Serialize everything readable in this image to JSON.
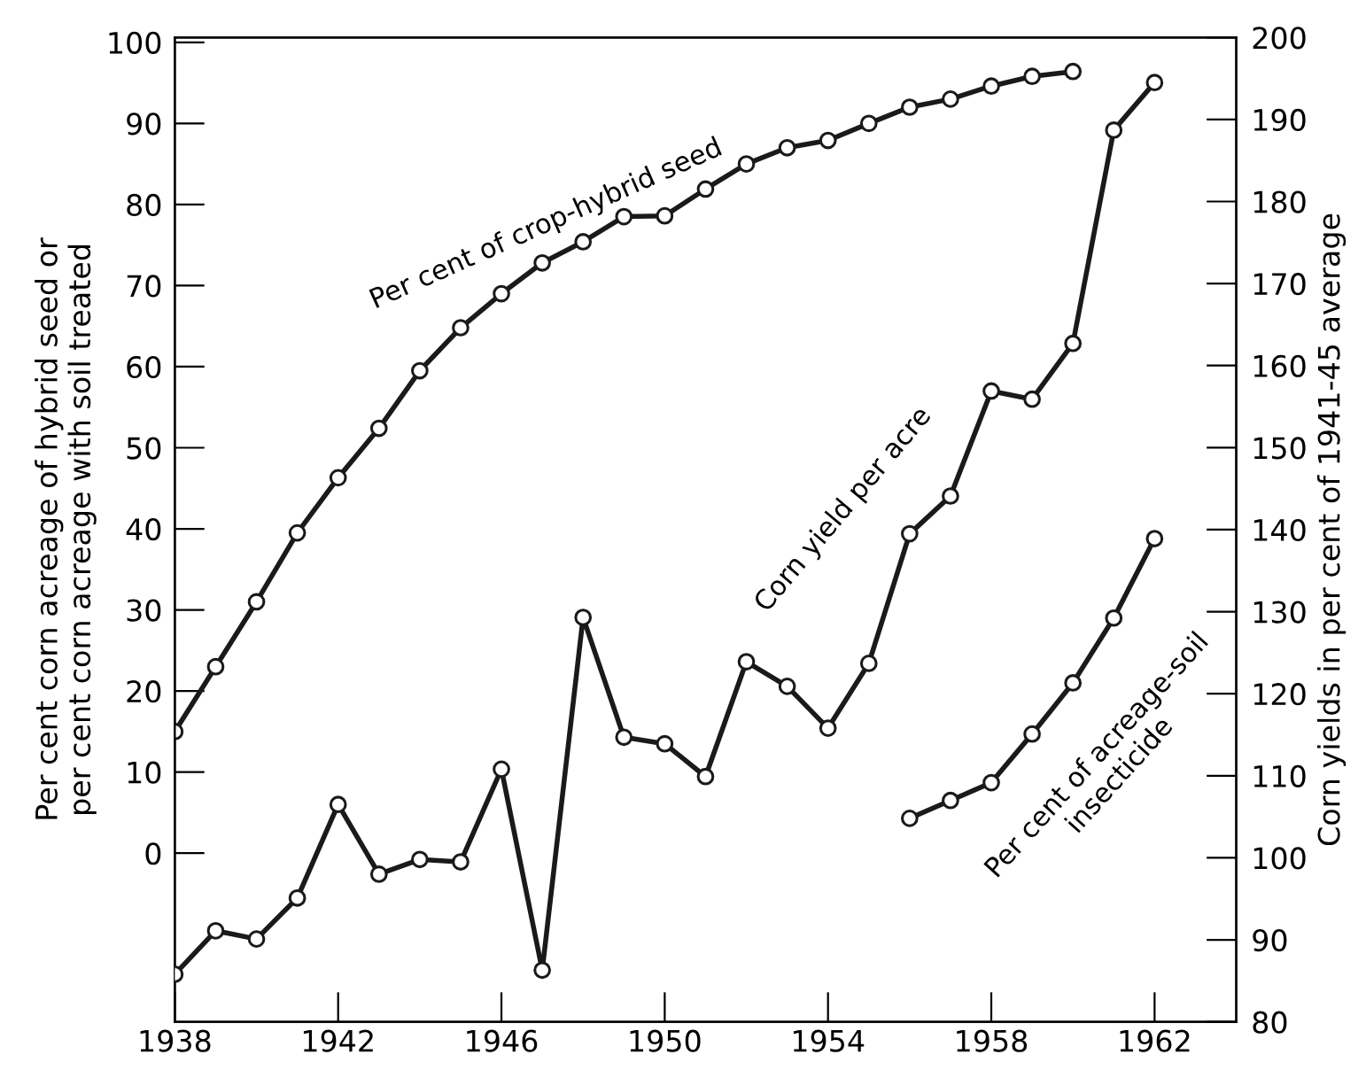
{
  "chart_data": {
    "type": "line",
    "ylabel": "Per cent corn acreage of hybrid seed or\nper cent corn acreage with soil treated",
    "y2label": "Corn yields in per cent of 1941-45 average",
    "xlim": [
      1938,
      1964
    ],
    "xticks": [
      1938,
      1942,
      1946,
      1950,
      1954,
      1958,
      1962
    ],
    "ylim": [
      -20.8,
      100.6
    ],
    "yticks": [
      0,
      10,
      20,
      30,
      40,
      50,
      60,
      70,
      80,
      90,
      100
    ],
    "y2lim": [
      80,
      200
    ],
    "y2ticks": [
      80,
      90,
      100,
      110,
      120,
      130,
      140,
      150,
      160,
      170,
      180,
      190,
      200
    ],
    "marker": "circle",
    "line_style": "solid",
    "grid": false,
    "legend": false,
    "annotations": [
      "Per cent of crop-hybrid seed",
      "Corn yield per acre",
      "Per cent of acreage-soil\ninsecticide"
    ],
    "series": [
      {
        "color": "#1a1a1a",
        "x": [
          1938,
          1939,
          1940,
          1941,
          1942,
          1943,
          1944,
          1945,
          1946,
          1947,
          1948,
          1949,
          1950,
          1951,
          1952,
          1953,
          1954,
          1955,
          1956,
          1957,
          1958,
          1959,
          1960
        ],
        "values": [
          15,
          23,
          31,
          39.5,
          46.3,
          52.4,
          59.5,
          64.8,
          69,
          72.8,
          75.4,
          78.5,
          78.6,
          81.9,
          85,
          87,
          87.9,
          90,
          92,
          93,
          94.6,
          95.8,
          96.4
        ]
      },
      {
        "color": "#1a1a1a",
        "axis": "y2",
        "x": [
          1938,
          1939,
          1940,
          1941,
          1942,
          1943,
          1944,
          1945,
          1946,
          1947,
          1948,
          1949,
          1950,
          1951,
          1952,
          1953,
          1954,
          1955,
          1956,
          1957,
          1958,
          1959,
          1960,
          1961,
          1962
        ],
        "values": [
          85.8,
          91.1,
          90.1,
          95.1,
          106.5,
          98,
          99.8,
          99.5,
          110.8,
          86.3,
          129.3,
          114.7,
          113.9,
          109.9,
          123.9,
          120.9,
          115.8,
          123.7,
          139.5,
          144.1,
          156.9,
          155.9,
          162.7,
          188.7,
          194.5
        ]
      },
      {
        "color": "#1a1a1a",
        "x": [
          1956,
          1957,
          1958,
          1959,
          1960,
          1961,
          1962
        ],
        "values": [
          4.3,
          6.5,
          8.7,
          14.7,
          21,
          29,
          38.8
        ]
      }
    ]
  }
}
